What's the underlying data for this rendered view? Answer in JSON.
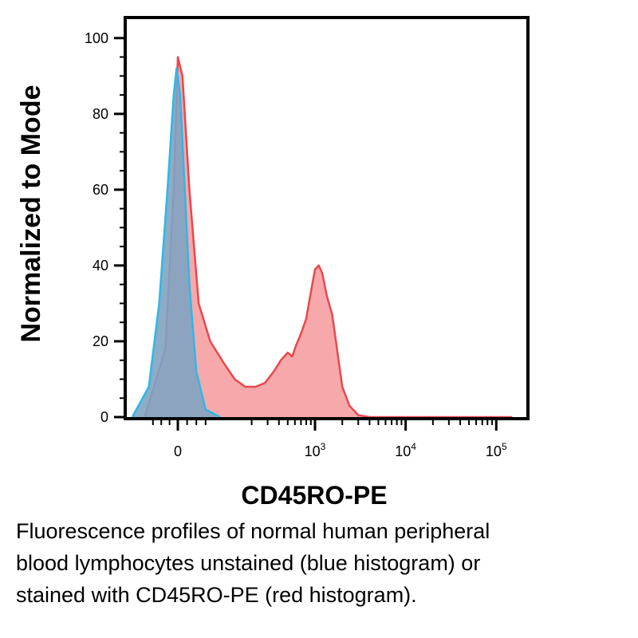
{
  "chart_data": {
    "type": "area",
    "title": "",
    "xlabel": "CD45RO-PE",
    "ylabel": "Normalized to Mode",
    "ylim": [
      0,
      105
    ],
    "yticks": [
      0,
      20,
      40,
      60,
      80,
      100
    ],
    "x_scale": "biexponential",
    "xticks": [
      {
        "base": "0",
        "exp": ""
      },
      {
        "base": "10",
        "exp": "3"
      },
      {
        "base": "10",
        "exp": "4"
      },
      {
        "base": "10",
        "exp": "5"
      }
    ],
    "grid": false,
    "legend": "none",
    "series": [
      {
        "color": "#e8484e",
        "fill": "#f7a3a5",
        "points": [
          [
            -80,
            0
          ],
          [
            -30,
            18
          ],
          [
            -10,
            60
          ],
          [
            0,
            95
          ],
          [
            10,
            90
          ],
          [
            25,
            60
          ],
          [
            45,
            30
          ],
          [
            70,
            20
          ],
          [
            100,
            14
          ],
          [
            130,
            10
          ],
          [
            170,
            8
          ],
          [
            220,
            8
          ],
          [
            280,
            9
          ],
          [
            350,
            12
          ],
          [
            420,
            15
          ],
          [
            500,
            17
          ],
          [
            560,
            16
          ],
          [
            620,
            19
          ],
          [
            700,
            22
          ],
          [
            800,
            26
          ],
          [
            900,
            33
          ],
          [
            1000,
            39
          ],
          [
            1100,
            40
          ],
          [
            1200,
            38
          ],
          [
            1350,
            32
          ],
          [
            1550,
            27
          ],
          [
            1750,
            18
          ],
          [
            2000,
            8
          ],
          [
            2400,
            3
          ],
          [
            3000,
            0.5
          ],
          [
            4000,
            0
          ],
          [
            150000,
            0
          ]
        ]
      },
      {
        "color": "#2db8e8",
        "fill": "#7fa3c2",
        "points": [
          [
            -110,
            0
          ],
          [
            -70,
            8
          ],
          [
            -45,
            30
          ],
          [
            -25,
            60
          ],
          [
            -10,
            85
          ],
          [
            -3,
            92
          ],
          [
            5,
            85
          ],
          [
            15,
            60
          ],
          [
            25,
            35
          ],
          [
            40,
            12
          ],
          [
            60,
            2
          ],
          [
            90,
            0
          ]
        ]
      }
    ]
  },
  "caption": {
    "lines": [
      "Fluorescence profiles of normal human peripheral",
      "blood lymphocytes unstained (blue histogram) or",
      "stained with CD45RO-PE (red histogram)."
    ]
  }
}
